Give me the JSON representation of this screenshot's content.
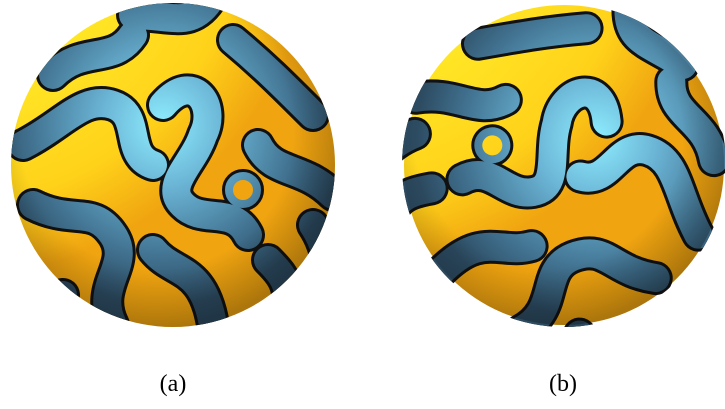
{
  "figure": {
    "labels": [
      "(a)",
      "(b)"
    ]
  }
}
